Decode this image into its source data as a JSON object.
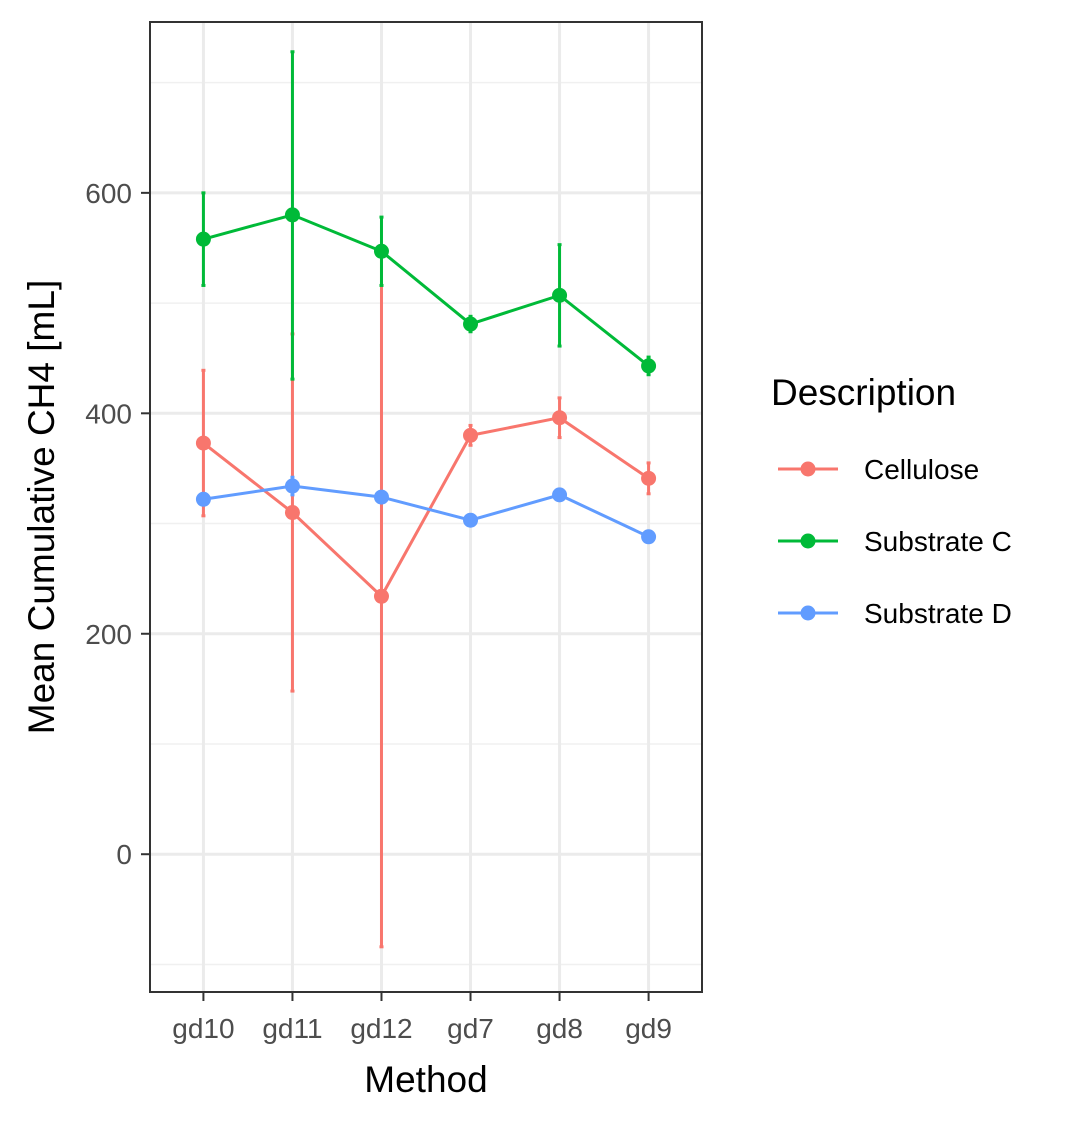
{
  "chart_data": {
    "type": "line",
    "xlabel": "Method",
    "ylabel": "Mean Cumulative CH4 [mL]",
    "categories": [
      "gd10",
      "gd11",
      "gd12",
      "gd7",
      "gd8",
      "gd9"
    ],
    "ylim": [
      -125,
      755
    ],
    "yticks": [
      0,
      200,
      400,
      600
    ],
    "yticks_labels": [
      "0",
      "200",
      "400",
      "600"
    ],
    "grid": true,
    "legend": {
      "title": "Description",
      "position": "right"
    },
    "series": [
      {
        "name": "Cellulose",
        "color": "#F8766D",
        "values": [
          373,
          310,
          234,
          380,
          396,
          341
        ],
        "err_low": [
          307,
          148,
          -84,
          371,
          378,
          327
        ],
        "err_high": [
          439,
          472,
          552,
          389,
          414,
          355
        ]
      },
      {
        "name": "Substrate C",
        "color": "#00BA38",
        "values": [
          558,
          580,
          547,
          481,
          507,
          443
        ],
        "err_low": [
          516,
          431,
          516,
          474,
          461,
          435
        ],
        "err_high": [
          600,
          728,
          578,
          488,
          553,
          451
        ]
      },
      {
        "name": "Substrate D",
        "color": "#619CFF",
        "values": [
          322,
          334,
          324,
          303,
          326,
          288
        ],
        "err_low": [
          317,
          326,
          320,
          299,
          321,
          284
        ],
        "err_high": [
          327,
          342,
          328,
          307,
          331,
          292
        ]
      }
    ]
  }
}
